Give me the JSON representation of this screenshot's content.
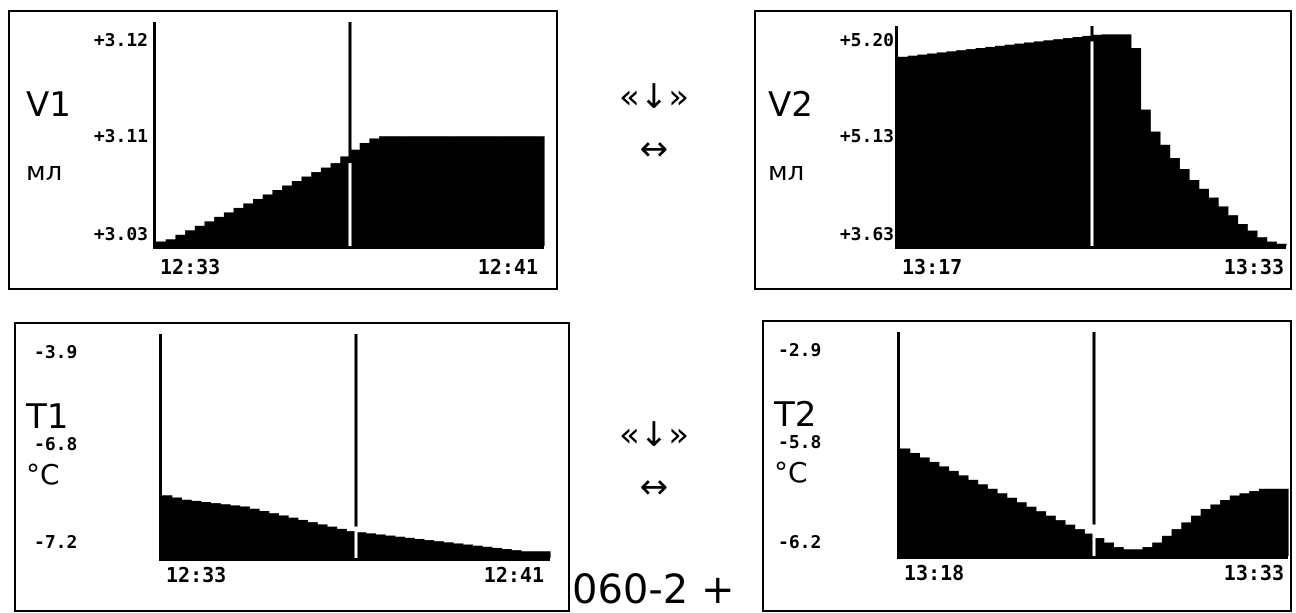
{
  "arrows": [
    {
      "top": "«↓»",
      "bottom": "↔"
    },
    {
      "top": "«↓»",
      "bottom": "↔"
    }
  ],
  "footer_fragment": "060-2 +",
  "chart_data": [
    {
      "type": "area",
      "channel": "V1",
      "unit": "мл",
      "y_ticks": [
        "+3.12",
        "+3.11",
        "+3.03"
      ],
      "x_ticks": [
        "12:33",
        "12:41"
      ],
      "cursor_x": 0.5,
      "cursor_value": 0.37,
      "values": [
        0.02,
        0.03,
        0.05,
        0.07,
        0.09,
        0.11,
        0.13,
        0.15,
        0.17,
        0.19,
        0.21,
        0.23,
        0.25,
        0.27,
        0.29,
        0.31,
        0.33,
        0.35,
        0.37,
        0.4,
        0.43,
        0.46,
        0.48,
        0.49,
        0.49,
        0.49,
        0.49,
        0.49,
        0.49,
        0.49,
        0.49,
        0.49,
        0.49,
        0.49,
        0.49,
        0.49,
        0.49,
        0.49,
        0.49,
        0.49
      ]
    },
    {
      "type": "area",
      "channel": "V2",
      "unit": "мл",
      "y_ticks": [
        "+5.20",
        "+5.13",
        "+3.63"
      ],
      "x_ticks": [
        "13:17",
        "13:33"
      ],
      "cursor_x": 0.5,
      "cursor_value": 0.93,
      "values": [
        0.86,
        0.865,
        0.87,
        0.875,
        0.88,
        0.885,
        0.89,
        0.895,
        0.9,
        0.905,
        0.91,
        0.915,
        0.92,
        0.925,
        0.93,
        0.935,
        0.94,
        0.945,
        0.95,
        0.955,
        0.96,
        0.962,
        0.962,
        0.962,
        0.9,
        0.62,
        0.52,
        0.46,
        0.4,
        0.35,
        0.3,
        0.26,
        0.22,
        0.18,
        0.14,
        0.1,
        0.07,
        0.04,
        0.02,
        0.01
      ]
    },
    {
      "type": "area",
      "channel": "T1",
      "unit": "°C",
      "y_ticks": [
        "-3.9",
        "-6.8",
        "-7.2"
      ],
      "x_ticks": [
        "12:33",
        "12:41"
      ],
      "cursor_x": 0.5,
      "cursor_value": 0.14,
      "values": [
        0.28,
        0.27,
        0.26,
        0.255,
        0.25,
        0.245,
        0.24,
        0.235,
        0.23,
        0.22,
        0.21,
        0.2,
        0.19,
        0.18,
        0.17,
        0.16,
        0.15,
        0.14,
        0.13,
        0.12,
        0.115,
        0.11,
        0.105,
        0.1,
        0.095,
        0.09,
        0.085,
        0.08,
        0.075,
        0.07,
        0.065,
        0.06,
        0.055,
        0.05,
        0.045,
        0.04,
        0.035,
        0.03,
        0.03,
        0.03
      ]
    },
    {
      "type": "area",
      "channel": "T2",
      "unit": "°C",
      "y_ticks": [
        "-2.9",
        "-5.8",
        "-6.2"
      ],
      "x_ticks": [
        "13:18",
        "13:33"
      ],
      "cursor_x": 0.5,
      "cursor_value": 0.14,
      "values": [
        0.48,
        0.46,
        0.44,
        0.42,
        0.4,
        0.38,
        0.36,
        0.34,
        0.32,
        0.3,
        0.28,
        0.26,
        0.24,
        0.22,
        0.2,
        0.18,
        0.16,
        0.14,
        0.12,
        0.1,
        0.08,
        0.06,
        0.04,
        0.03,
        0.03,
        0.04,
        0.06,
        0.09,
        0.12,
        0.15,
        0.18,
        0.21,
        0.23,
        0.25,
        0.27,
        0.28,
        0.29,
        0.3,
        0.3,
        0.3
      ]
    }
  ]
}
